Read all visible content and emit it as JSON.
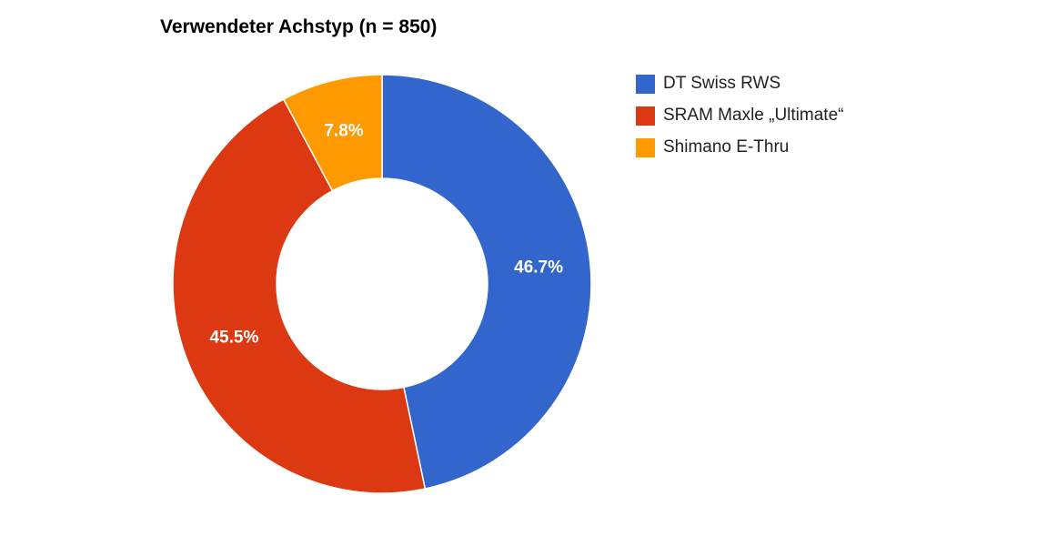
{
  "chart_data": {
    "type": "pie",
    "title": "Verwendeter Achstyp (n = 850)",
    "donut": true,
    "legend_position": "right",
    "slices": [
      {
        "label": "DT Swiss RWS",
        "value": 46.7,
        "value_label": "46.7%",
        "color": "#3366cc"
      },
      {
        "label": "SRAM Maxle „Ultimate“",
        "value": 45.5,
        "value_label": "45.5%",
        "color": "#dc3912"
      },
      {
        "label": "Shimano E-Thru",
        "value": 7.8,
        "value_label": "7.8%",
        "color": "#ff9900"
      }
    ]
  }
}
